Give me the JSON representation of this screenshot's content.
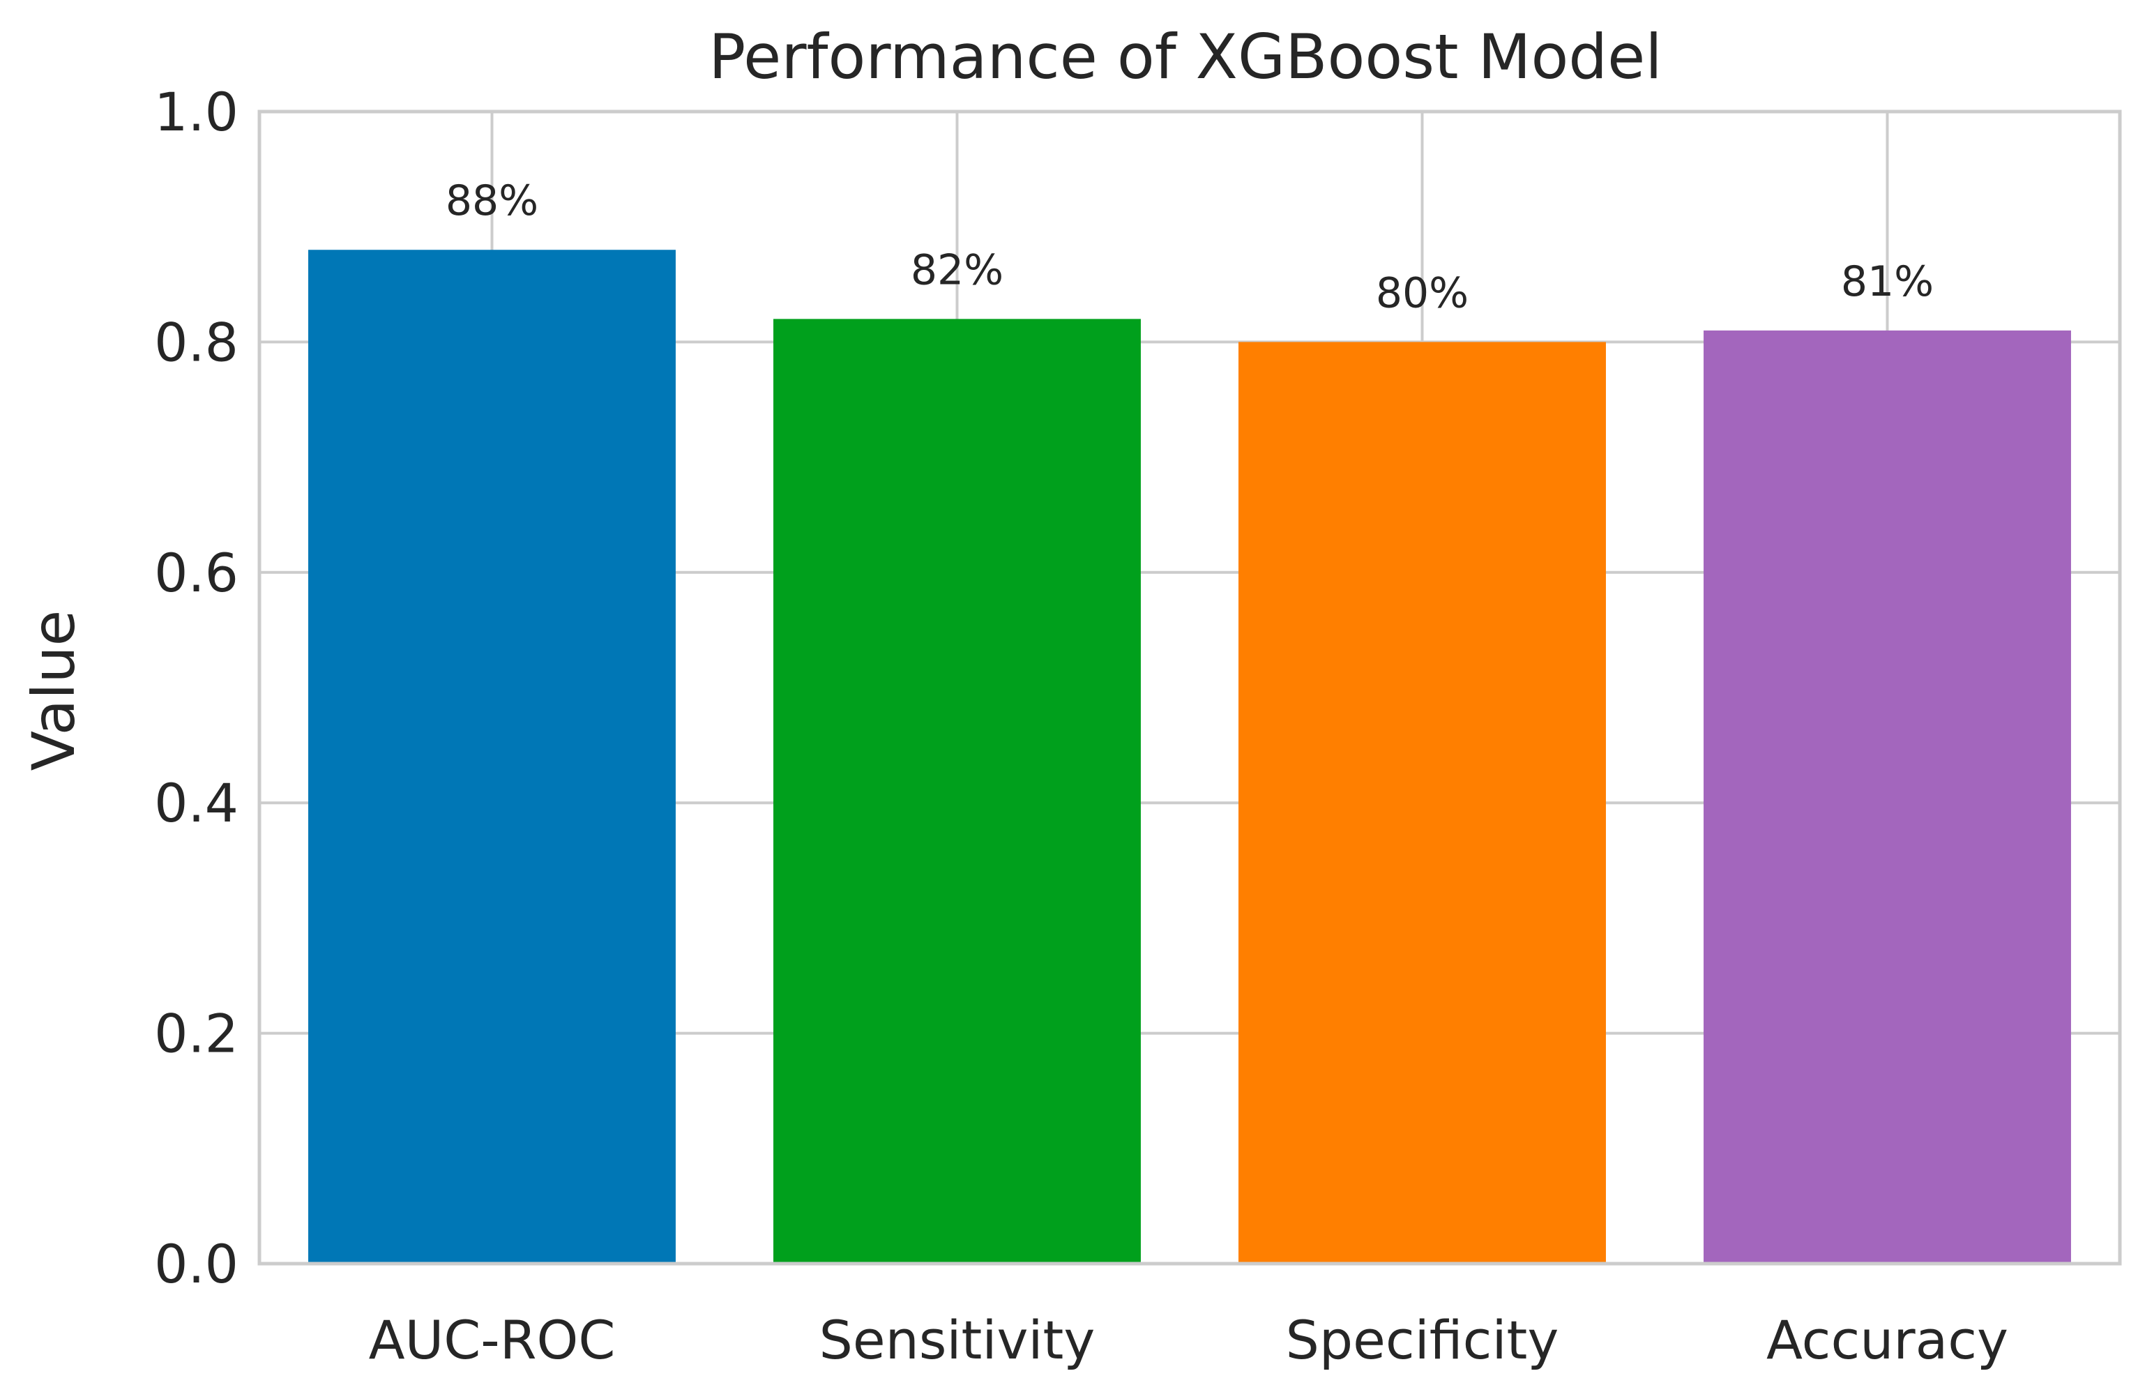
{
  "chart_data": {
    "type": "bar",
    "title": "Performance of XGBoost Model",
    "xlabel": "",
    "ylabel": "Value",
    "categories": [
      "AUC-ROC",
      "Sensitivity",
      "Specificity",
      "Accuracy"
    ],
    "values": [
      0.88,
      0.82,
      0.8,
      0.81
    ],
    "data_labels": [
      "88%",
      "82%",
      "80%",
      "81%"
    ],
    "colors": [
      "#0077b6",
      "#00a01c",
      "#ff7f00",
      "#a366bd"
    ],
    "ylim": [
      0,
      1.0
    ],
    "yticks": [
      0.0,
      0.2,
      0.4,
      0.6,
      0.8,
      1.0
    ],
    "ytick_labels": [
      "0.0",
      "0.2",
      "0.4",
      "0.6",
      "0.8",
      "1.0"
    ],
    "grid": true,
    "legend": "none"
  }
}
